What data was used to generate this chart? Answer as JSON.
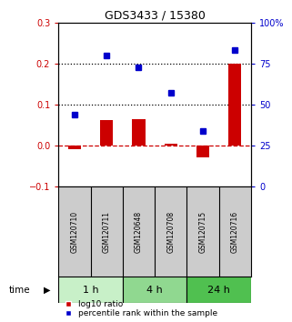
{
  "title": "GDS3433 / 15380",
  "categories": [
    "GSM120710",
    "GSM120711",
    "GSM120648",
    "GSM120708",
    "GSM120715",
    "GSM120716"
  ],
  "log10_ratio": [
    -0.008,
    0.062,
    0.065,
    0.005,
    -0.028,
    0.2
  ],
  "percentile_rank": [
    44,
    80,
    73,
    57,
    34,
    83
  ],
  "groups": [
    {
      "label": "1 h",
      "cols": [
        0,
        1
      ],
      "color": "#c8f0c8"
    },
    {
      "label": "4 h",
      "cols": [
        2,
        3
      ],
      "color": "#90d890"
    },
    {
      "label": "24 h",
      "cols": [
        4,
        5
      ],
      "color": "#50c050"
    }
  ],
  "bar_color": "#cc0000",
  "dot_color": "#0000cc",
  "left_axis_color": "#cc0000",
  "right_axis_color": "#0000cc",
  "ylim_left": [
    -0.1,
    0.3
  ],
  "ylim_right": [
    0,
    100
  ],
  "yticks_left": [
    -0.1,
    0.0,
    0.1,
    0.2,
    0.3
  ],
  "yticks_right": [
    0,
    25,
    50,
    75,
    100
  ],
  "ytick_labels_right": [
    "0",
    "25",
    "50",
    "75",
    "100%"
  ],
  "hline_y": [
    0.1,
    0.2
  ],
  "hline_color": "black",
  "hline_style": "dotted",
  "zero_line_color": "#cc0000",
  "zero_line_style": "dashed",
  "background_color": "#ffffff",
  "plot_bg_color": "#ffffff",
  "sample_label_bg": "#cccccc",
  "legend_labels": [
    "log10 ratio",
    "percentile rank within the sample"
  ]
}
